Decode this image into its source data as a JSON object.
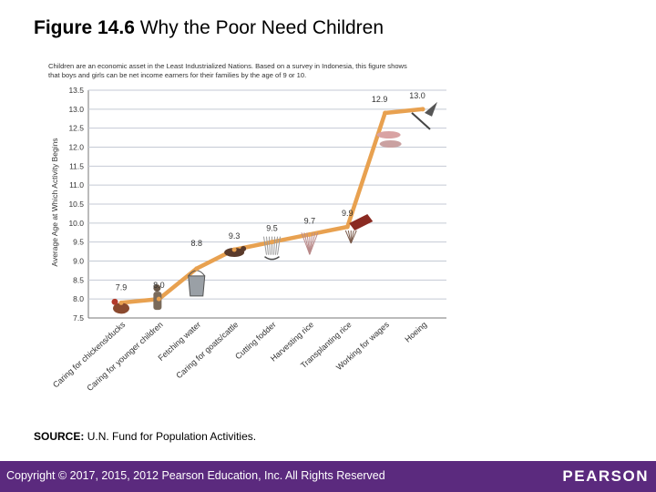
{
  "title": {
    "figure_label": "Figure 14.6",
    "text": "Why the Poor Need Children"
  },
  "chart_data": {
    "type": "line",
    "subtitle": "Children are an economic asset in the Least Industrialized Nations. Based on a survey in Indonesia, this figure shows that boys and girls can be net income earners for their families by the age of 9 or 10.",
    "subtitle_lines": [
      "Children are an economic asset in the Least Industrialized Nations. Based on a survey in Indonesia, this figure shows",
      "that boys and girls can be net income earners for their families by the age of 9 or 10."
    ],
    "ylabel": "Average Age at Which Activity Begins",
    "xlabel": "",
    "ylim": [
      7.5,
      13.5
    ],
    "yticks": [
      "7.5",
      "8.0",
      "8.5",
      "9.0",
      "9.5",
      "10.0",
      "10.5",
      "11.0",
      "11.5",
      "12.0",
      "12.5",
      "13.0",
      "13.5"
    ],
    "grid": true,
    "categories": [
      "Caring for chickens/ducks",
      "Caring for younger children",
      "Fetching water",
      "Caring for goats/cattle",
      "Cutting fodder",
      "Harvesting rice",
      "Transplanting rice",
      "Working for wages",
      "Hoeing"
    ],
    "series": [
      {
        "name": "Average age",
        "values": [
          7.9,
          8.0,
          8.8,
          9.3,
          9.5,
          9.7,
          9.9,
          12.9,
          13.0
        ]
      }
    ],
    "data_labels": [
      "7.9",
      "8.0",
      "8.8",
      "9.3",
      "9.5",
      "9.7",
      "9.9",
      "12.9",
      "13.0"
    ],
    "line_color": "#e8a150"
  },
  "source": {
    "label": "SOURCE:",
    "text": "U.N. Fund for Population Activities."
  },
  "footer": {
    "copyright": "Copyright © 2017, 2015, 2012 Pearson Education, Inc. All Rights Reserved",
    "logo": "PEARSON",
    "bar_color": "#5b2a7e"
  }
}
